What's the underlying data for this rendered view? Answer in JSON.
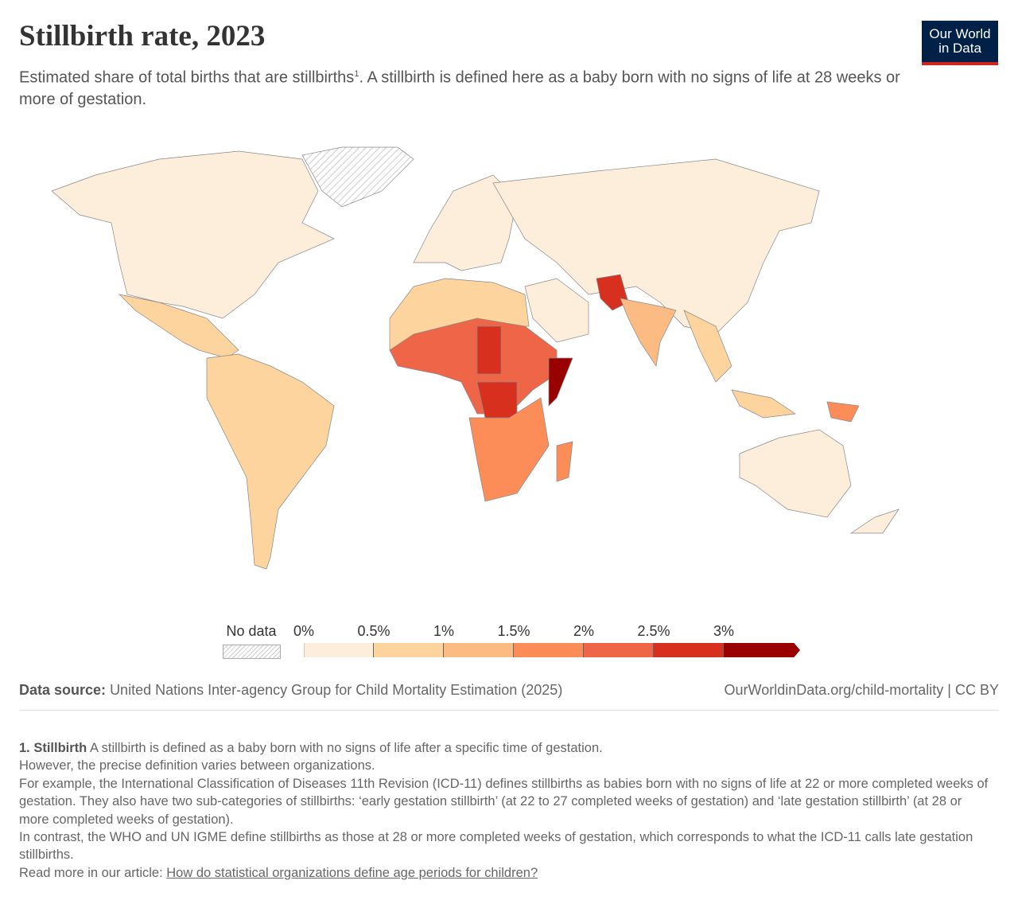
{
  "header": {
    "title": "Stillbirth rate, 2023",
    "subtitle": "Estimated share of total births that are stillbirths",
    "subtitle_sup": "1",
    "subtitle_rest": ". A stillbirth is defined here as a baby born with no signs of life at 28 weeks or more of gestation.",
    "logo_line1": "Our World",
    "logo_line2": "in Data"
  },
  "legend": {
    "no_data": "No data",
    "ticks": [
      "0%",
      "0.5%",
      "1%",
      "1.5%",
      "2%",
      "2.5%",
      "3%"
    ],
    "colors": [
      "#fdeedb",
      "#fdd49e",
      "#fdbb84",
      "#fc8d59",
      "#ef6548",
      "#d7301f",
      "#990000"
    ]
  },
  "footer": {
    "source_label": "Data source:",
    "source": "United Nations Inter-agency Group for Child Mortality Estimation (2025)",
    "url": "OurWorldinData.org/child-mortality | CC BY"
  },
  "notes": {
    "n1_label": "1. Stillbirth",
    "n1": "A stillbirth is defined as a baby born with no signs of life after a specific time of gestation.",
    "n2": "However, the precise definition varies between organizations.",
    "n3": "For example, the International Classification of Diseases 11th Revision (ICD-11) defines stillbirths as babies born with no signs of life at 22 or more completed weeks of gestation. They also have two sub-categories of stillbirths: ‘early gestation stillbirth’ (at 22 to 27 completed weeks of gestation) and ‘late gestation stillbirth’ (at 28 or more completed weeks of gestation).",
    "n4": "In contrast, the WHO and UN IGME define stillbirths as those at 28 or more completed weeks of gestation, which corresponds to what the ICD-11 calls late gestation stillbirths.",
    "n5": "Read more in our article:",
    "link": "How do statistical organizations define age periods for children?"
  }
}
